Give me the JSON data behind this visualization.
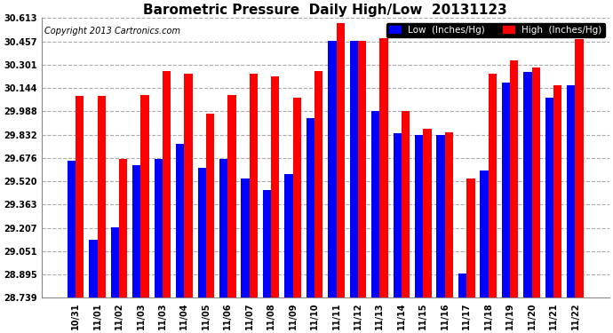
{
  "title": "Barometric Pressure  Daily High/Low  20131123",
  "copyright": "Copyright 2013 Cartronics.com",
  "legend_low": "Low  (Inches/Hg)",
  "legend_high": "High  (Inches/Hg)",
  "dates": [
    "10/31",
    "11/01",
    "11/02",
    "11/03",
    "11/03",
    "11/04",
    "11/05",
    "11/06",
    "11/07",
    "11/08",
    "11/09",
    "11/10",
    "11/11",
    "11/12",
    "11/13",
    "11/14",
    "11/15",
    "11/16",
    "11/17",
    "11/18",
    "11/19",
    "11/20",
    "11/21",
    "11/22"
  ],
  "low_values": [
    29.66,
    29.13,
    29.21,
    29.63,
    29.67,
    29.77,
    29.61,
    29.67,
    29.54,
    29.46,
    29.57,
    29.94,
    30.46,
    30.46,
    29.99,
    29.84,
    29.83,
    29.83,
    28.9,
    29.59,
    30.18,
    30.25,
    30.08,
    30.16
  ],
  "high_values": [
    30.09,
    30.09,
    29.67,
    30.1,
    30.26,
    30.24,
    29.97,
    30.1,
    30.24,
    30.22,
    30.08,
    30.26,
    30.58,
    30.46,
    30.48,
    29.99,
    29.87,
    29.85,
    29.54,
    30.24,
    30.33,
    30.28,
    30.16,
    30.47
  ],
  "ybase": 28.739,
  "ylim_min": 28.739,
  "ylim_max": 30.613,
  "yticks": [
    28.739,
    28.895,
    29.051,
    29.207,
    29.363,
    29.52,
    29.676,
    29.832,
    29.988,
    30.144,
    30.301,
    30.457,
    30.613
  ],
  "bar_color_low": "#0000ff",
  "bar_color_high": "#ff0000",
  "background_color": "#ffffff",
  "grid_color": "#aaaaaa",
  "title_fontsize": 11,
  "copyright_fontsize": 7,
  "legend_fontsize": 7.5,
  "tick_fontsize": 7
}
